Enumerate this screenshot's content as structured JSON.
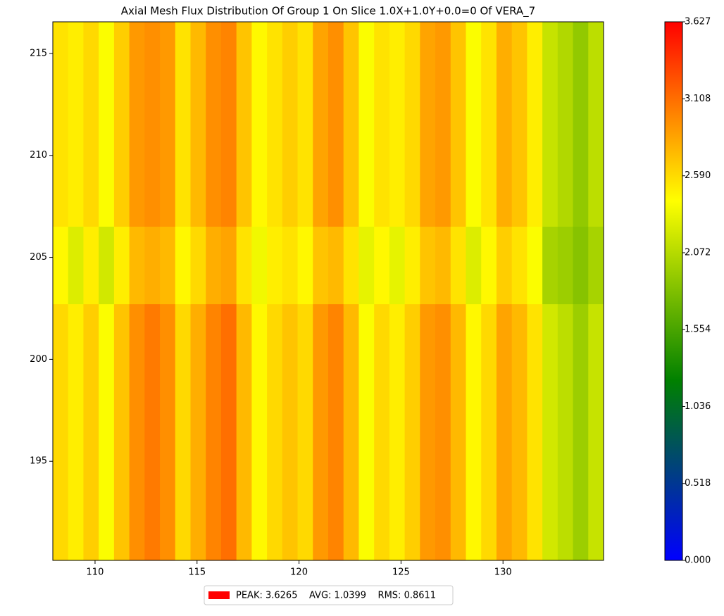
{
  "chart_data": {
    "type": "heatmap",
    "title": "Axial Mesh Flux Distribution Of Group 1 On Slice 1.0X+1.0Y+0.0=0 Of VERA_7",
    "x_edges": [
      107.93,
      108.68,
      109.43,
      110.18,
      110.93,
      111.68,
      112.43,
      113.18,
      113.93,
      114.68,
      115.43,
      116.18,
      116.93,
      117.68,
      118.43,
      119.18,
      119.93,
      120.68,
      121.43,
      122.18,
      122.93,
      123.68,
      124.43,
      125.18,
      125.93,
      126.68,
      127.43,
      128.18,
      128.93,
      129.68,
      130.43,
      131.18,
      131.93,
      132.68,
      133.43,
      134.18,
      134.93
    ],
    "y_edges": [
      190.14,
      202.72,
      206.52,
      216.55
    ],
    "values": [
      [
        2.6,
        2.5,
        2.65,
        2.4,
        2.7,
        2.95,
        3.05,
        2.95,
        2.6,
        2.8,
        3.0,
        3.1,
        2.75,
        2.45,
        2.6,
        2.7,
        2.6,
        2.9,
        3.0,
        2.75,
        2.4,
        2.6,
        2.5,
        2.65,
        2.9,
        2.95,
        2.75,
        2.45,
        2.6,
        2.85,
        2.75,
        2.55,
        2.2,
        2.1,
        1.95,
        2.15
      ],
      [
        2.45,
        2.25,
        2.5,
        2.2,
        2.5,
        2.75,
        2.8,
        2.75,
        2.45,
        2.6,
        2.8,
        2.85,
        2.55,
        2.35,
        2.5,
        2.55,
        2.45,
        2.7,
        2.75,
        2.55,
        2.3,
        2.45,
        2.3,
        2.5,
        2.7,
        2.75,
        2.55,
        2.25,
        2.45,
        2.65,
        2.55,
        2.4,
        2.0,
        1.95,
        1.85,
        2.0
      ],
      [
        2.55,
        2.5,
        2.6,
        2.4,
        2.65,
        2.9,
        2.95,
        2.9,
        2.55,
        2.75,
        2.95,
        3.0,
        2.7,
        2.45,
        2.55,
        2.65,
        2.55,
        2.85,
        2.95,
        2.7,
        2.4,
        2.55,
        2.5,
        2.6,
        2.85,
        2.9,
        2.7,
        2.4,
        2.55,
        2.8,
        2.7,
        2.5,
        2.15,
        2.05,
        1.9,
        2.1
      ]
    ],
    "xlim": [
      107.93,
      134.93
    ],
    "xticks": [
      110,
      115,
      120,
      125,
      130
    ],
    "ylim": [
      190.14,
      216.55
    ],
    "yticks": [
      195,
      200,
      205,
      210,
      215
    ],
    "clim": [
      0,
      3.627
    ],
    "colors": [
      "#0000ff",
      "#008000",
      "#ffff00",
      "#ff0000"
    ],
    "cticks": [
      {
        "value": 0,
        "label": "0.000"
      },
      {
        "value": 0.518,
        "label": "0.518"
      },
      {
        "value": 1.036,
        "label": "1.036"
      },
      {
        "value": 1.554,
        "label": "1.554"
      },
      {
        "value": 2.072,
        "label": "2.072"
      },
      {
        "value": 2.59,
        "label": "2.590"
      },
      {
        "value": 3.108,
        "label": "3.108"
      },
      {
        "value": 3.627,
        "label": "3.627"
      }
    ],
    "legend": {
      "label": "PEAK: 3.6265    AVG: 1.0399    RMS: 0.8611",
      "color": "#ff0000"
    }
  }
}
